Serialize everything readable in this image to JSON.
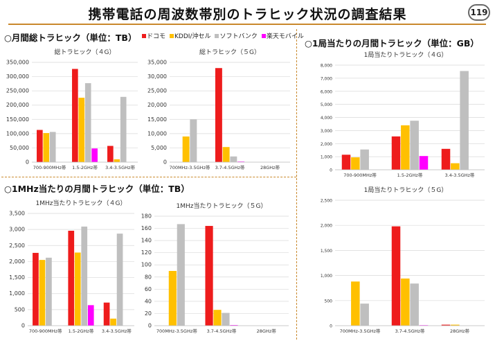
{
  "page": {
    "title": "携帯電話の周波数帯別のトラヒック状況の調査結果",
    "page_number": "119"
  },
  "sections": {
    "monthly_total": "○月間総トラヒック（単位：TB）",
    "per_mhz": "○1MHz当たりの月間トラヒック（単位：TB）",
    "per_station": "○1局当たりの月間トラヒック（単位：GB）"
  },
  "legend": [
    {
      "name": "ドコモ",
      "color": "#ee1c1c"
    },
    {
      "name": "KDDI/沖セル",
      "color": "#ffc000"
    },
    {
      "name": "ソフトバンク",
      "color": "#bfbfbf"
    },
    {
      "name": "楽天モバイル",
      "color": "#ff00ff"
    }
  ],
  "chart_data": [
    {
      "id": "total-4g",
      "type": "bar",
      "title": "総トラヒック（４G）",
      "categories": [
        "700-900MHz帯",
        "1.5-2GHz帯",
        "3.4-3.5GHz帯"
      ],
      "series": [
        {
          "name": "ドコモ",
          "values": [
            113000,
            327000,
            57000
          ]
        },
        {
          "name": "KDDI/沖セル",
          "values": [
            102000,
            226000,
            10000
          ]
        },
        {
          "name": "ソフトバンク",
          "values": [
            106000,
            277000,
            229000
          ]
        },
        {
          "name": "楽天モバイル",
          "values": [
            0,
            48000,
            0
          ]
        }
      ],
      "ylim": [
        0,
        350000
      ],
      "yticks": [
        "0",
        "50,000",
        "100,000",
        "150,000",
        "200,000",
        "250,000",
        "300,000",
        "350,000"
      ],
      "grid": true
    },
    {
      "id": "total-5g",
      "type": "bar",
      "title": "総トラヒック（５G）",
      "categories": [
        "700MHz-3.5GHz帯",
        "3.7-4.5GHz帯",
        "28GHz帯"
      ],
      "series": [
        {
          "name": "ドコモ",
          "values": [
            0,
            33000,
            0
          ]
        },
        {
          "name": "KDDI/沖セル",
          "values": [
            9000,
            5300,
            0
          ]
        },
        {
          "name": "ソフトバンク",
          "values": [
            15000,
            2000,
            0
          ]
        },
        {
          "name": "楽天モバイル",
          "values": [
            0,
            200,
            0
          ]
        }
      ],
      "ylim": [
        0,
        35000
      ],
      "yticks": [
        "0",
        "5,000",
        "10,000",
        "15,000",
        "20,000",
        "25,000",
        "30,000",
        "35,000"
      ],
      "grid": true
    },
    {
      "id": "mhz-4g",
      "type": "bar",
      "title": "1MHz当たりトラヒック（４G）",
      "categories": [
        "700-900MHz帯",
        "1.5-2GHz帯",
        "3.4-3.5GHz帯"
      ],
      "series": [
        {
          "name": "ドコモ",
          "values": [
            2270,
            2960,
            720
          ]
        },
        {
          "name": "KDDI/沖セル",
          "values": [
            2050,
            2280,
            220
          ]
        },
        {
          "name": "ソフトバンク",
          "values": [
            2120,
            3090,
            2870
          ]
        },
        {
          "name": "楽天モバイル",
          "values": [
            0,
            640,
            0
          ]
        }
      ],
      "ylim": [
        0,
        3500
      ],
      "yticks": [
        "0",
        "500",
        "1,000",
        "1,500",
        "2,000",
        "2,500",
        "3,000",
        "3,500"
      ],
      "grid": true
    },
    {
      "id": "mhz-5g",
      "type": "bar",
      "title": "1MHz当たりトラヒック（５G）",
      "categories": [
        "700MHz-3.5GHz帯",
        "3.7-4.5GHz帯",
        "28GHz帯"
      ],
      "series": [
        {
          "name": "ドコモ",
          "values": [
            0,
            164,
            0
          ]
        },
        {
          "name": "KDDI/沖セル",
          "values": [
            90,
            26,
            0
          ]
        },
        {
          "name": "ソフトバンク",
          "values": [
            167,
            21,
            0
          ]
        },
        {
          "name": "楽天モバイル",
          "values": [
            0,
            1,
            0
          ]
        }
      ],
      "ylim": [
        0,
        180
      ],
      "yticks": [
        "0",
        "20",
        "40",
        "60",
        "80",
        "100",
        "120",
        "140",
        "160",
        "180"
      ],
      "grid": true
    },
    {
      "id": "station-4g",
      "type": "bar",
      "title": "1局当たりトラヒック（４G）",
      "categories": [
        "700-900MHz帯",
        "1.5-2GHz帯",
        "3.4-3.5GHz帯"
      ],
      "series": [
        {
          "name": "ドコモ",
          "values": [
            1150,
            2550,
            1600
          ]
        },
        {
          "name": "KDDI/沖セル",
          "values": [
            950,
            3400,
            500
          ]
        },
        {
          "name": "ソフトバンク",
          "values": [
            1550,
            3750,
            7550
          ]
        },
        {
          "name": "楽天モバイル",
          "values": [
            0,
            1050,
            0
          ]
        }
      ],
      "ylim": [
        0,
        8000
      ],
      "yticks": [
        "0",
        "1,000",
        "2,000",
        "3,000",
        "4,000",
        "5,000",
        "6,000",
        "7,000",
        "8,000"
      ],
      "grid": true
    },
    {
      "id": "station-5g",
      "type": "bar",
      "title": "1局当たりトラヒック（５G）",
      "categories": [
        "700MHz-3.5GHz帯",
        "3.7-4.5GHz帯",
        "28GHz帯"
      ],
      "series": [
        {
          "name": "ドコモ",
          "values": [
            0,
            1980,
            20
          ]
        },
        {
          "name": "KDDI/沖セル",
          "values": [
            880,
            940,
            20
          ]
        },
        {
          "name": "ソフトバンク",
          "values": [
            440,
            840,
            0
          ]
        },
        {
          "name": "楽天モバイル",
          "values": [
            0,
            10,
            0
          ]
        }
      ],
      "ylim": [
        0,
        2500
      ],
      "yticks": [
        "0",
        "500",
        "1,000",
        "1,500",
        "2,000",
        "2,500"
      ],
      "grid": true
    }
  ]
}
